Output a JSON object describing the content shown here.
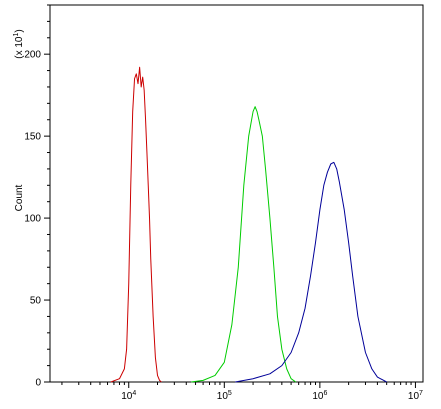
{
  "chart_data": {
    "type": "line",
    "title": "",
    "xlabel": "",
    "ylabel": "Count",
    "y_multiplier": "(x 10",
    "y_multiplier_exp": "1",
    "y_multiplier_close": ")",
    "x_scale": "log",
    "xlim": [
      1500,
      12000000
    ],
    "ylim": [
      0,
      230
    ],
    "grid": false,
    "legend": "none",
    "y_ticks": [
      {
        "value": 0,
        "label": "0"
      },
      {
        "value": 50,
        "label": "50"
      },
      {
        "value": 100,
        "label": "100"
      },
      {
        "value": 150,
        "label": "150"
      },
      {
        "value": 200,
        "label": "200"
      }
    ],
    "x_ticks": [
      {
        "value": 10000,
        "base": "10",
        "exp": "4"
      },
      {
        "value": 100000,
        "base": "10",
        "exp": "5"
      },
      {
        "value": 1000000,
        "base": "10",
        "exp": "6"
      },
      {
        "value": 10000000,
        "base": "10",
        "exp": "7"
      }
    ],
    "series": [
      {
        "color": "#cc0000",
        "x": [
          6500,
          8000,
          9000,
          9500,
          10000,
          10500,
          11000,
          11500,
          12000,
          12500,
          13000,
          13500,
          14000,
          14500,
          15000,
          15500,
          16000,
          16500,
          17000,
          18000,
          19000,
          20000,
          21000,
          22000
        ],
        "y": [
          0,
          2,
          8,
          20,
          60,
          120,
          165,
          185,
          188,
          182,
          192,
          180,
          186,
          178,
          160,
          140,
          120,
          100,
          75,
          40,
          15,
          4,
          1,
          0
        ]
      },
      {
        "color": "#00cc00",
        "x": [
          45000,
          60000,
          80000,
          100000,
          120000,
          140000,
          160000,
          180000,
          200000,
          210000,
          220000,
          230000,
          250000,
          270000,
          300000,
          330000,
          360000,
          400000,
          450000,
          500000,
          560000
        ],
        "y": [
          0,
          1,
          4,
          12,
          35,
          70,
          120,
          150,
          165,
          168,
          165,
          160,
          150,
          130,
          100,
          70,
          40,
          20,
          8,
          2,
          0
        ]
      },
      {
        "color": "#000099",
        "x": [
          130000,
          200000,
          300000,
          400000,
          500000,
          600000,
          700000,
          800000,
          900000,
          1000000,
          1100000,
          1200000,
          1300000,
          1400000,
          1500000,
          1600000,
          1800000,
          2000000,
          2200000,
          2500000,
          3000000,
          3500000,
          4000000,
          5000000
        ],
        "y": [
          0,
          2,
          5,
          10,
          18,
          30,
          45,
          65,
          85,
          105,
          120,
          128,
          133,
          134,
          130,
          122,
          105,
          85,
          65,
          40,
          18,
          8,
          3,
          0
        ]
      }
    ]
  }
}
